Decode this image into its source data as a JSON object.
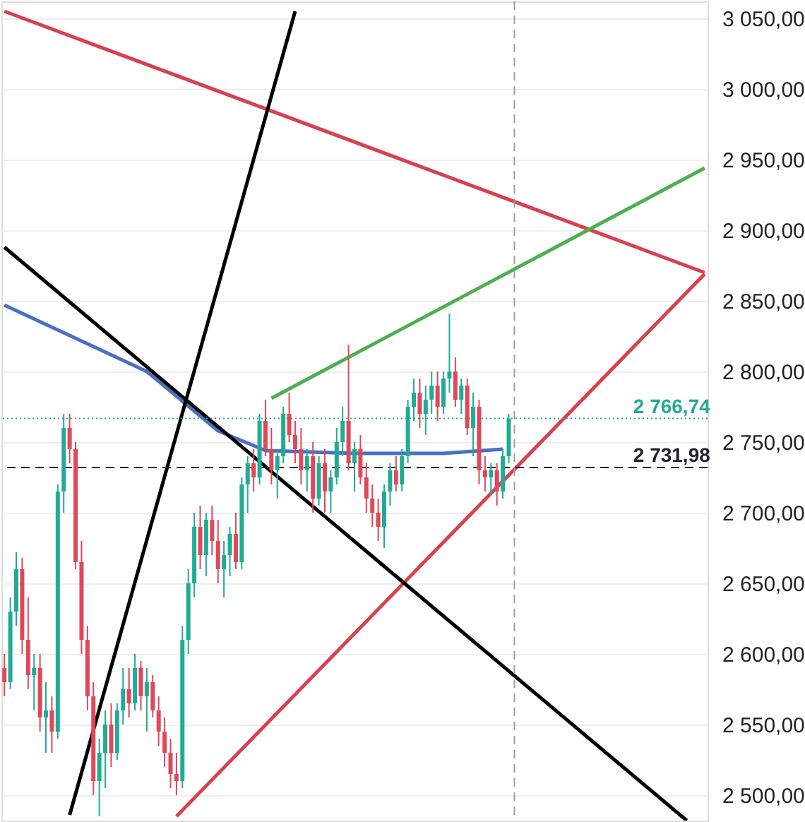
{
  "chart_data": {
    "type": "candlestick",
    "categories": [
      null,
      null,
      null,
      null,
      null,
      null,
      null,
      null,
      null,
      null,
      null,
      null,
      null,
      null,
      null,
      null,
      null,
      null,
      null,
      null,
      null,
      null,
      null,
      null,
      null,
      null,
      null,
      null,
      null,
      null,
      null,
      null,
      null,
      null,
      null,
      null,
      null,
      null,
      null,
      null,
      null,
      null,
      null,
      null,
      null,
      null,
      null,
      null,
      null,
      null,
      null,
      null,
      null,
      null,
      null,
      null,
      null,
      null,
      null,
      null,
      null,
      null,
      null,
      null,
      null,
      null,
      null,
      null,
      null,
      null,
      null,
      null,
      null,
      null,
      null,
      null,
      null,
      null,
      null,
      null,
      null,
      null,
      null,
      null,
      null,
      null,
      null,
      null,
      null,
      null,
      null,
      null,
      null,
      null,
      null,
      null,
      null,
      null,
      null,
      null,
      null,
      null,
      null,
      null,
      null,
      null,
      null,
      null,
      null,
      null,
      null,
      null,
      null,
      null,
      null,
      null,
      null,
      null,
      null
    ],
    "ohlc": [
      [
        2590,
        2600,
        2570,
        2580
      ],
      [
        2580,
        2640,
        2575,
        2630
      ],
      [
        2630,
        2672,
        2620,
        2660
      ],
      [
        2660,
        2668,
        2600,
        2610
      ],
      [
        2610,
        2640,
        2575,
        2585
      ],
      [
        2585,
        2600,
        2560,
        2590
      ],
      [
        2590,
        2600,
        2545,
        2555
      ],
      [
        2555,
        2580,
        2530,
        2560
      ],
      [
        2560,
        2570,
        2530,
        2545
      ],
      [
        2545,
        2720,
        2540,
        2715
      ],
      [
        2715,
        2770,
        2700,
        2760
      ],
      [
        2760,
        2770,
        2735,
        2745
      ],
      [
        2745,
        2750,
        2660,
        2665
      ],
      [
        2665,
        2680,
        2600,
        2610
      ],
      [
        2610,
        2620,
        2560,
        2570
      ],
      [
        2570,
        2580,
        2500,
        2510
      ],
      [
        2510,
        2540,
        2485,
        2530
      ],
      [
        2530,
        2560,
        2505,
        2550
      ],
      [
        2550,
        2565,
        2520,
        2530
      ],
      [
        2530,
        2565,
        2525,
        2560
      ],
      [
        2560,
        2590,
        2550,
        2575
      ],
      [
        2575,
        2590,
        2555,
        2565
      ],
      [
        2565,
        2600,
        2560,
        2590
      ],
      [
        2590,
        2595,
        2560,
        2570
      ],
      [
        2570,
        2590,
        2545,
        2580
      ],
      [
        2580,
        2585,
        2555,
        2560
      ],
      [
        2560,
        2570,
        2535,
        2545
      ],
      [
        2545,
        2555,
        2520,
        2530
      ],
      [
        2530,
        2540,
        2505,
        2515
      ],
      [
        2515,
        2530,
        2500,
        2510
      ],
      [
        2510,
        2620,
        2505,
        2610
      ],
      [
        2610,
        2660,
        2600,
        2650
      ],
      [
        2650,
        2700,
        2640,
        2690
      ],
      [
        2690,
        2705,
        2660,
        2670
      ],
      [
        2670,
        2700,
        2655,
        2695
      ],
      [
        2695,
        2705,
        2670,
        2680
      ],
      [
        2680,
        2695,
        2650,
        2660
      ],
      [
        2660,
        2680,
        2640,
        2670
      ],
      [
        2670,
        2690,
        2655,
        2685
      ],
      [
        2685,
        2700,
        2660,
        2665
      ],
      [
        2665,
        2725,
        2660,
        2720
      ],
      [
        2720,
        2740,
        2700,
        2735
      ],
      [
        2735,
        2745,
        2715,
        2725
      ],
      [
        2725,
        2770,
        2720,
        2765
      ],
      [
        2765,
        2780,
        2740,
        2745
      ],
      [
        2745,
        2760,
        2720,
        2730
      ],
      [
        2730,
        2745,
        2710,
        2740
      ],
      [
        2740,
        2775,
        2735,
        2770
      ],
      [
        2770,
        2785,
        2750,
        2755
      ],
      [
        2755,
        2765,
        2735,
        2745
      ],
      [
        2745,
        2760,
        2720,
        2730
      ],
      [
        2730,
        2745,
        2715,
        2740
      ],
      [
        2740,
        2750,
        2700,
        2710
      ],
      [
        2710,
        2740,
        2705,
        2735
      ],
      [
        2735,
        2745,
        2700,
        2715
      ],
      [
        2715,
        2730,
        2700,
        2725
      ],
      [
        2725,
        2760,
        2720,
        2750
      ],
      [
        2750,
        2775,
        2740,
        2765
      ],
      [
        2765,
        2819,
        2730,
        2735
      ],
      [
        2735,
        2750,
        2715,
        2745
      ],
      [
        2745,
        2755,
        2720,
        2725
      ],
      [
        2725,
        2735,
        2700,
        2710
      ],
      [
        2710,
        2720,
        2690,
        2700
      ],
      [
        2700,
        2710,
        2680,
        2690
      ],
      [
        2690,
        2720,
        2675,
        2715
      ],
      [
        2715,
        2735,
        2705,
        2730
      ],
      [
        2730,
        2740,
        2715,
        2720
      ],
      [
        2720,
        2745,
        2715,
        2740
      ],
      [
        2740,
        2780,
        2735,
        2775
      ],
      [
        2775,
        2795,
        2765,
        2785
      ],
      [
        2785,
        2795,
        2760,
        2770
      ],
      [
        2770,
        2790,
        2755,
        2780
      ],
      [
        2780,
        2800,
        2770,
        2790
      ],
      [
        2790,
        2800,
        2765,
        2775
      ],
      [
        2775,
        2800,
        2770,
        2795
      ],
      [
        2795,
        2841,
        2785,
        2800
      ],
      [
        2800,
        2810,
        2775,
        2780
      ],
      [
        2780,
        2795,
        2770,
        2790
      ],
      [
        2790,
        2795,
        2755,
        2760
      ],
      [
        2760,
        2785,
        2740,
        2775
      ],
      [
        2775,
        2780,
        2720,
        2730
      ],
      [
        2730,
        2740,
        2715,
        2725
      ],
      [
        2725,
        2735,
        2712,
        2730
      ],
      [
        2730,
        2735,
        2705,
        2715
      ],
      [
        2715,
        2745,
        2710,
        2740
      ],
      [
        2740,
        2770,
        2735,
        2766.74
      ],
      null,
      null,
      null,
      null,
      null,
      null,
      null,
      null,
      null,
      null,
      null,
      null,
      null,
      null,
      null,
      null,
      null,
      null,
      null,
      null,
      null,
      null,
      null,
      null,
      null,
      null,
      null,
      null,
      null,
      null,
      null,
      null,
      null
    ],
    "colors": [
      "#e0485a",
      "#22ab94",
      "#22ab94",
      "#e0485a",
      "#e0485a",
      "#22ab94",
      "#e0485a",
      "#22ab94",
      "#e0485a",
      "#22ab94",
      "#22ab94",
      "#e0485a",
      "#e0485a",
      "#e0485a",
      "#e0485a",
      "#e0485a",
      "#22ab94",
      "#22ab94",
      "#e0485a",
      "#22ab94",
      "#22ab94",
      "#e0485a",
      "#22ab94",
      "#e0485a",
      "#22ab94",
      "#e0485a",
      "#e0485a",
      "#e0485a",
      "#e0485a",
      "#e0485a",
      "#22ab94",
      "#22ab94",
      "#22ab94",
      "#e0485a",
      "#22ab94",
      "#e0485a",
      "#e0485a",
      "#22ab94",
      "#22ab94",
      "#e0485a",
      "#22ab94",
      "#22ab94",
      "#e0485a",
      "#22ab94",
      "#e0485a",
      "#e0485a",
      "#22ab94",
      "#22ab94",
      "#e0485a",
      "#e0485a",
      "#e0485a",
      "#22ab94",
      "#e0485a",
      "#22ab94",
      "#e0485a",
      "#22ab94",
      "#22ab94",
      "#22ab94",
      "#e0485a",
      "#22ab94",
      "#e0485a",
      "#e0485a",
      "#e0485a",
      "#e0485a",
      "#22ab94",
      "#22ab94",
      "#e0485a",
      "#22ab94",
      "#22ab94",
      "#22ab94",
      "#e0485a",
      "#22ab94",
      "#22ab94",
      "#e0485a",
      "#22ab94",
      "#22ab94",
      "#e0485a",
      "#22ab94",
      "#e0485a",
      "#22ab94",
      "#e0485a",
      "#e0485a",
      "#22ab94",
      "#e0485a",
      "#22ab94",
      "#22ab94",
      null,
      null,
      null,
      null,
      null,
      null,
      null,
      null,
      null,
      null,
      null,
      null,
      null,
      null,
      null,
      null,
      null,
      null,
      null,
      null,
      null,
      null,
      null,
      null,
      null,
      null,
      null,
      null,
      null,
      null,
      null,
      null,
      null
    ],
    "series": [
      {
        "type": "line",
        "color": "#4a6fc4",
        "values": [
          2847,
          null,
          null,
          null,
          null,
          null,
          null,
          null,
          null,
          null,
          null,
          null,
          null,
          null,
          null,
          null,
          null,
          null,
          null,
          null,
          null,
          null,
          null,
          null,
          2800,
          null,
          null,
          null,
          null,
          null,
          null,
          null,
          null,
          null,
          null,
          null,
          2758,
          null,
          null,
          null,
          null,
          null,
          null,
          null,
          2744,
          null,
          null,
          null,
          null,
          null,
          null,
          null,
          null,
          null,
          null,
          null,
          null,
          null,
          null,
          2742,
          null,
          null,
          null,
          null,
          null,
          null,
          null,
          null,
          null,
          null,
          null,
          null,
          null,
          null,
          2742,
          null,
          null,
          null,
          null,
          null,
          null,
          null,
          null,
          null,
          2745,
          null,
          null,
          null,
          null,
          null,
          null,
          null,
          null,
          null,
          null,
          null,
          null,
          null,
          null,
          null,
          null,
          null,
          null,
          null,
          null,
          null,
          null,
          null,
          null,
          null,
          null,
          null,
          null,
          null,
          null,
          null,
          null,
          null,
          null
        ]
      },
      {
        "type": "line",
        "color": "#d9404e",
        "values": [
          3055,
          null,
          null,
          null,
          null,
          null,
          null,
          null,
          null,
          null,
          null,
          null,
          null,
          null,
          null,
          null,
          null,
          null,
          null,
          null,
          null,
          null,
          null,
          null,
          null,
          null,
          null,
          null,
          null,
          null,
          null,
          null,
          null,
          null,
          null,
          null,
          null,
          null,
          null,
          null,
          null,
          null,
          null,
          null,
          null,
          null,
          null,
          null,
          null,
          null,
          null,
          null,
          null,
          null,
          null,
          null,
          null,
          null,
          null,
          null,
          null,
          null,
          null,
          null,
          null,
          null,
          null,
          null,
          null,
          null,
          null,
          null,
          null,
          null,
          null,
          null,
          null,
          null,
          null,
          null,
          null,
          null,
          null,
          null,
          null,
          null,
          null,
          null,
          null,
          null,
          null,
          null,
          null,
          null,
          null,
          null,
          null,
          null,
          null,
          null,
          null,
          null,
          null,
          null,
          null,
          null,
          null,
          null,
          null,
          null,
          null,
          null,
          null,
          null,
          null,
          null,
          null,
          null,
          2870
        ]
      },
      {
        "type": "line",
        "color": "#d9404e",
        "values": [
          null,
          null,
          null,
          null,
          null,
          null,
          null,
          null,
          null,
          null,
          null,
          null,
          null,
          null,
          null,
          null,
          null,
          null,
          null,
          null,
          null,
          null,
          null,
          null,
          null,
          null,
          null,
          null,
          null,
          2485,
          null,
          null,
          null,
          null,
          null,
          null,
          null,
          null,
          null,
          null,
          null,
          null,
          null,
          null,
          null,
          null,
          null,
          null,
          null,
          null,
          null,
          null,
          null,
          null,
          null,
          null,
          null,
          null,
          null,
          null,
          null,
          null,
          null,
          null,
          null,
          null,
          null,
          null,
          null,
          null,
          null,
          null,
          null,
          null,
          null,
          null,
          null,
          null,
          null,
          null,
          null,
          null,
          null,
          null,
          null,
          null,
          null,
          null,
          null,
          null,
          null,
          null,
          null,
          null,
          null,
          null,
          null,
          null,
          null,
          null,
          null,
          null,
          null,
          null,
          null,
          null,
          null,
          null,
          null,
          null,
          null,
          null,
          null,
          null,
          null,
          null,
          null,
          null,
          2869
        ]
      },
      {
        "type": "line",
        "color": "#4caf50",
        "values": [
          null,
          null,
          null,
          null,
          null,
          null,
          null,
          null,
          null,
          null,
          null,
          null,
          null,
          null,
          null,
          null,
          null,
          null,
          null,
          null,
          null,
          null,
          null,
          null,
          null,
          null,
          null,
          null,
          null,
          null,
          null,
          null,
          null,
          null,
          null,
          null,
          null,
          null,
          null,
          null,
          null,
          null,
          null,
          null,
          null,
          2781,
          null,
          null,
          null,
          null,
          null,
          null,
          null,
          null,
          null,
          null,
          null,
          null,
          null,
          null,
          null,
          null,
          null,
          null,
          null,
          null,
          null,
          null,
          null,
          null,
          null,
          null,
          null,
          null,
          null,
          null,
          null,
          null,
          null,
          null,
          null,
          null,
          null,
          null,
          null,
          null,
          null,
          null,
          null,
          null,
          null,
          null,
          null,
          null,
          null,
          null,
          null,
          null,
          null,
          null,
          null,
          null,
          null,
          null,
          null,
          null,
          null,
          null,
          null,
          null,
          null,
          null,
          null,
          null,
          null,
          null,
          null,
          null,
          2944
        ]
      },
      {
        "type": "line",
        "color": "#000000",
        "values": [
          2888,
          null,
          null,
          null,
          null,
          null,
          null,
          null,
          null,
          null,
          null,
          null,
          null,
          null,
          null,
          null,
          null,
          null,
          null,
          null,
          null,
          null,
          null,
          null,
          null,
          null,
          null,
          null,
          null,
          null,
          null,
          null,
          null,
          null,
          null,
          null,
          null,
          null,
          null,
          null,
          null,
          null,
          null,
          null,
          null,
          null,
          null,
          null,
          null,
          null,
          null,
          null,
          null,
          null,
          null,
          null,
          null,
          null,
          null,
          null,
          null,
          null,
          null,
          null,
          null,
          null,
          null,
          null,
          null,
          null,
          null,
          null,
          null,
          null,
          null,
          null,
          null,
          null,
          null,
          null,
          null,
          null,
          null,
          null,
          null,
          null,
          null,
          null,
          null,
          null,
          null,
          null,
          null,
          null,
          null,
          null,
          null,
          null,
          null,
          null,
          null,
          null,
          null,
          null,
          null,
          null,
          null,
          null,
          null,
          null,
          null,
          null,
          null,
          null,
          null,
          2482,
          null,
          null,
          null
        ]
      },
      {
        "type": "line",
        "color": "#000000",
        "values": [
          null,
          null,
          null,
          null,
          null,
          null,
          null,
          null,
          null,
          null,
          null,
          2486,
          null,
          null,
          null,
          null,
          null,
          null,
          null,
          null,
          null,
          null,
          null,
          null,
          null,
          null,
          null,
          null,
          null,
          null,
          null,
          null,
          null,
          null,
          null,
          null,
          null,
          null,
          null,
          null,
          null,
          null,
          null,
          null,
          null,
          null,
          null,
          null,
          null,
          3055,
          null,
          null,
          null,
          null,
          null,
          null,
          null,
          null,
          null,
          null,
          null,
          null,
          null,
          null,
          null,
          null,
          null,
          null,
          null,
          null,
          null,
          null,
          null,
          null,
          null,
          null,
          null,
          null,
          null,
          null,
          null,
          null,
          null,
          null,
          null,
          null,
          null,
          null,
          null,
          null,
          null,
          null,
          null,
          null,
          null,
          null,
          null,
          null,
          null,
          null,
          null,
          null,
          null,
          null,
          null,
          null,
          null,
          null,
          null,
          null,
          null,
          null,
          null,
          null,
          null,
          null,
          null,
          null,
          null
        ]
      }
    ],
    "ref_lines": [
      {
        "axis": "y",
        "value": 2766.74,
        "label": "2 766,74",
        "color": "#22ab94",
        "line_style": "dotted"
      },
      {
        "axis": "y",
        "value": 2731.98,
        "label": "2 731,98",
        "color": "#1e222d",
        "line_style": "dashed"
      }
    ],
    "ylim": [
      2482,
      3062
    ],
    "yticks": [
      {
        "value": 2500,
        "label": "2 500,00"
      },
      {
        "value": 2550,
        "label": "2 550,00"
      },
      {
        "value": 2600,
        "label": "2 600,00"
      },
      {
        "value": 2650,
        "label": "2 650,00"
      },
      {
        "value": 2700,
        "label": "2 700,00"
      },
      {
        "value": 2750,
        "label": "2 750,00"
      },
      {
        "value": 2800,
        "label": "2 800,00"
      },
      {
        "value": 2850,
        "label": "2 850,00"
      },
      {
        "value": 2900,
        "label": "2 900,00"
      },
      {
        "value": 2950,
        "label": "2 950,00"
      },
      {
        "value": 3000,
        "label": "3 000,00"
      },
      {
        "value": 3050,
        "label": "3 050,00"
      }
    ],
    "tick_labels": "y",
    "grid": "y"
  }
}
